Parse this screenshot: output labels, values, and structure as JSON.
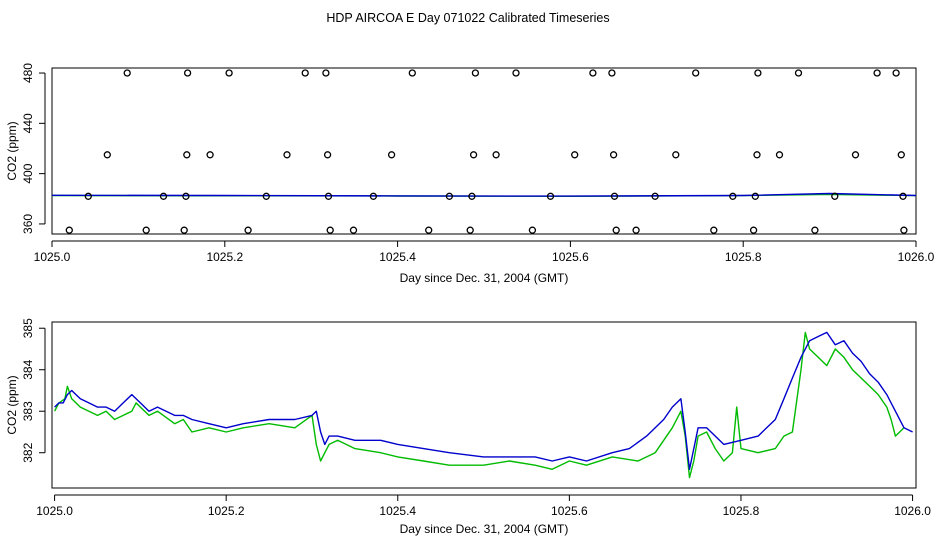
{
  "figure": {
    "title": "HDP AIRCOA E  Day 071022  Calibrated Timeseries"
  },
  "colors": {
    "blue": "#0000cc",
    "green": "#00bb00",
    "axis": "#000000"
  },
  "chart_data": [
    {
      "type": "scatter",
      "title": "",
      "xlabel": "Day since Dec. 31, 2004 (GMT)",
      "ylabel": "CO2 (ppm)",
      "xlim": [
        1025.0,
        1026.0
      ],
      "ylim": [
        352,
        484
      ],
      "xticks": [
        1025.0,
        1025.2,
        1025.4,
        1025.6,
        1025.8,
        1026.0
      ],
      "xtick_labels": [
        "1025.0",
        "1025.2",
        "1025.4",
        "1025.6",
        "1025.8",
        "1026.0"
      ],
      "yticks": [
        360,
        400,
        440,
        480
      ],
      "ytick_labels": [
        "360",
        "400",
        "440",
        "480"
      ],
      "points": [
        {
          "x": 1025.087,
          "y": 480
        },
        {
          "x": 1025.157,
          "y": 480
        },
        {
          "x": 1025.205,
          "y": 480
        },
        {
          "x": 1025.293,
          "y": 480
        },
        {
          "x": 1025.317,
          "y": 480
        },
        {
          "x": 1025.417,
          "y": 480
        },
        {
          "x": 1025.49,
          "y": 480
        },
        {
          "x": 1025.537,
          "y": 480
        },
        {
          "x": 1025.626,
          "y": 480
        },
        {
          "x": 1025.648,
          "y": 480
        },
        {
          "x": 1025.745,
          "y": 480
        },
        {
          "x": 1025.817,
          "y": 480
        },
        {
          "x": 1025.864,
          "y": 480
        },
        {
          "x": 1025.955,
          "y": 480
        },
        {
          "x": 1025.977,
          "y": 480
        },
        {
          "x": 1025.064,
          "y": 415
        },
        {
          "x": 1025.156,
          "y": 415
        },
        {
          "x": 1025.183,
          "y": 415
        },
        {
          "x": 1025.272,
          "y": 415
        },
        {
          "x": 1025.319,
          "y": 415
        },
        {
          "x": 1025.393,
          "y": 415
        },
        {
          "x": 1025.488,
          "y": 415
        },
        {
          "x": 1025.514,
          "y": 415
        },
        {
          "x": 1025.605,
          "y": 415
        },
        {
          "x": 1025.65,
          "y": 415
        },
        {
          "x": 1025.722,
          "y": 415
        },
        {
          "x": 1025.816,
          "y": 415
        },
        {
          "x": 1025.842,
          "y": 415
        },
        {
          "x": 1025.93,
          "y": 415
        },
        {
          "x": 1025.983,
          "y": 415
        },
        {
          "x": 1025.042,
          "y": 382
        },
        {
          "x": 1025.129,
          "y": 382
        },
        {
          "x": 1025.155,
          "y": 382
        },
        {
          "x": 1025.248,
          "y": 382
        },
        {
          "x": 1025.32,
          "y": 382
        },
        {
          "x": 1025.372,
          "y": 382
        },
        {
          "x": 1025.46,
          "y": 382
        },
        {
          "x": 1025.486,
          "y": 382
        },
        {
          "x": 1025.577,
          "y": 382
        },
        {
          "x": 1025.651,
          "y": 382
        },
        {
          "x": 1025.698,
          "y": 382
        },
        {
          "x": 1025.788,
          "y": 382
        },
        {
          "x": 1025.814,
          "y": 382
        },
        {
          "x": 1025.906,
          "y": 382
        },
        {
          "x": 1025.985,
          "y": 382
        },
        {
          "x": 1025.02,
          "y": 355
        },
        {
          "x": 1025.109,
          "y": 355
        },
        {
          "x": 1025.153,
          "y": 355
        },
        {
          "x": 1025.227,
          "y": 355
        },
        {
          "x": 1025.322,
          "y": 355
        },
        {
          "x": 1025.349,
          "y": 355
        },
        {
          "x": 1025.436,
          "y": 355
        },
        {
          "x": 1025.484,
          "y": 355
        },
        {
          "x": 1025.556,
          "y": 355
        },
        {
          "x": 1025.653,
          "y": 355
        },
        {
          "x": 1025.676,
          "y": 355
        },
        {
          "x": 1025.766,
          "y": 355
        },
        {
          "x": 1025.812,
          "y": 355
        },
        {
          "x": 1025.883,
          "y": 355
        },
        {
          "x": 1025.986,
          "y": 355
        }
      ],
      "series": [
        {
          "color": "#00bb00",
          "x": [
            1025.0,
            1025.2,
            1025.4,
            1025.6,
            1025.8,
            1025.9,
            1026.0
          ],
          "values": [
            382.6,
            382.4,
            382.2,
            382.0,
            382.5,
            383.5,
            382.5
          ]
        },
        {
          "color": "#0000cc",
          "x": [
            1025.0,
            1025.2,
            1025.4,
            1025.6,
            1025.8,
            1025.9,
            1026.0
          ],
          "values": [
            382.8,
            382.6,
            382.3,
            382.1,
            382.6,
            384.2,
            382.6
          ]
        }
      ]
    },
    {
      "type": "line",
      "title": "",
      "xlabel": "Day since Dec. 31, 2004 (GMT)",
      "ylabel": "CO2 (ppm)",
      "xlim": [
        1024.997,
        1026.004
      ],
      "ylim": [
        381.15,
        385.15
      ],
      "xticks": [
        1025.0,
        1025.2,
        1025.4,
        1025.6,
        1025.8,
        1026.0
      ],
      "xtick_labels": [
        "1025.0",
        "1025.2",
        "1025.4",
        "1025.6",
        "1025.8",
        "1026.0"
      ],
      "yticks": [
        382,
        383,
        384,
        385
      ],
      "ytick_labels": [
        "382",
        "383",
        "384",
        "385"
      ],
      "series": [
        {
          "color": "#00bb00",
          "x": [
            1025.0,
            1025.005,
            1025.012,
            1025.015,
            1025.02,
            1025.025,
            1025.03,
            1025.04,
            1025.05,
            1025.06,
            1025.07,
            1025.08,
            1025.09,
            1025.095,
            1025.1,
            1025.11,
            1025.12,
            1025.14,
            1025.15,
            1025.16,
            1025.18,
            1025.2,
            1025.22,
            1025.25,
            1025.28,
            1025.3,
            1025.305,
            1025.31,
            1025.315,
            1025.32,
            1025.33,
            1025.35,
            1025.38,
            1025.4,
            1025.43,
            1025.46,
            1025.5,
            1025.53,
            1025.56,
            1025.58,
            1025.6,
            1025.62,
            1025.65,
            1025.68,
            1025.7,
            1025.72,
            1025.73,
            1025.735,
            1025.74,
            1025.745,
            1025.75,
            1025.76,
            1025.77,
            1025.78,
            1025.79,
            1025.795,
            1025.8,
            1025.82,
            1025.84,
            1025.85,
            1025.86,
            1025.87,
            1025.875,
            1025.88,
            1025.89,
            1025.9,
            1025.91,
            1025.92,
            1025.93,
            1025.94,
            1025.95,
            1025.96,
            1025.97,
            1025.975,
            1025.98,
            1025.99
          ],
          "values": [
            383.0,
            383.2,
            383.3,
            383.6,
            383.3,
            383.2,
            383.1,
            383.0,
            382.9,
            383.0,
            382.8,
            382.9,
            383.0,
            383.2,
            383.1,
            382.9,
            383.0,
            382.7,
            382.8,
            382.5,
            382.6,
            382.5,
            382.6,
            382.7,
            382.6,
            382.9,
            382.2,
            381.8,
            382.0,
            382.2,
            382.3,
            382.1,
            382.0,
            381.9,
            381.8,
            381.7,
            381.7,
            381.8,
            381.7,
            381.6,
            381.8,
            381.7,
            381.9,
            381.8,
            382.0,
            382.6,
            383.0,
            382.4,
            381.4,
            381.8,
            382.4,
            382.5,
            382.1,
            381.8,
            382.0,
            383.1,
            382.1,
            382.0,
            382.1,
            382.4,
            382.5,
            384.0,
            384.9,
            384.5,
            384.3,
            384.1,
            384.5,
            384.3,
            384.0,
            383.8,
            383.6,
            383.4,
            383.1,
            382.8,
            382.4,
            382.6
          ]
        },
        {
          "color": "#0000cc",
          "x": [
            1025.0,
            1025.005,
            1025.01,
            1025.015,
            1025.02,
            1025.025,
            1025.03,
            1025.04,
            1025.05,
            1025.06,
            1025.07,
            1025.08,
            1025.09,
            1025.1,
            1025.11,
            1025.12,
            1025.14,
            1025.15,
            1025.16,
            1025.18,
            1025.2,
            1025.22,
            1025.25,
            1025.28,
            1025.3,
            1025.305,
            1025.31,
            1025.315,
            1025.32,
            1025.33,
            1025.35,
            1025.38,
            1025.4,
            1025.43,
            1025.46,
            1025.5,
            1025.53,
            1025.56,
            1025.58,
            1025.6,
            1025.62,
            1025.65,
            1025.67,
            1025.69,
            1025.71,
            1025.72,
            1025.73,
            1025.735,
            1025.74,
            1025.745,
            1025.75,
            1025.76,
            1025.78,
            1025.8,
            1025.82,
            1025.83,
            1025.84,
            1025.85,
            1025.86,
            1025.87,
            1025.88,
            1025.89,
            1025.9,
            1025.91,
            1025.92,
            1025.93,
            1025.94,
            1025.95,
            1025.96,
            1025.97,
            1025.98,
            1025.99,
            1026.0
          ],
          "values": [
            383.1,
            383.2,
            383.2,
            383.4,
            383.5,
            383.4,
            383.3,
            383.2,
            383.1,
            383.1,
            383.0,
            383.2,
            383.4,
            383.2,
            383.0,
            383.1,
            382.9,
            382.9,
            382.8,
            382.7,
            382.6,
            382.7,
            382.8,
            382.8,
            382.9,
            383.0,
            382.5,
            382.2,
            382.4,
            382.4,
            382.3,
            382.3,
            382.2,
            382.1,
            382.0,
            381.9,
            381.9,
            381.9,
            381.8,
            381.9,
            381.8,
            382.0,
            382.1,
            382.4,
            382.8,
            383.1,
            383.3,
            382.5,
            381.6,
            382.1,
            382.6,
            382.6,
            382.2,
            382.3,
            382.4,
            382.6,
            382.8,
            383.3,
            383.8,
            384.3,
            384.7,
            384.8,
            384.9,
            384.6,
            384.7,
            384.4,
            384.2,
            383.9,
            383.7,
            383.4,
            383.0,
            382.6,
            382.5
          ]
        }
      ]
    }
  ]
}
